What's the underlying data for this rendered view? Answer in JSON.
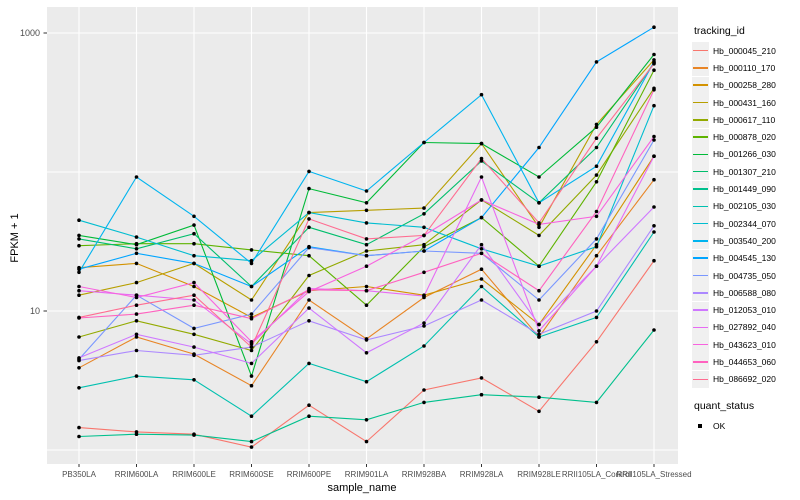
{
  "chart_data": {
    "type": "line",
    "title": "",
    "xlabel": "sample_name",
    "ylabel": "FPKM + 1",
    "y_scale": "log10",
    "ylim": [
      0.9,
      1300
    ],
    "grid": true,
    "panel_bg": "#EBEBEB",
    "grid_color": "#FFFFFF",
    "point_color": "#000000",
    "axis_text_color": "#4D4D4D",
    "y_ticks": [
      {
        "label": "1000",
        "value": 1000
      },
      {
        "label": "10",
        "value": 10
      }
    ],
    "y_gridlines": [
      1,
      10,
      100,
      1000
    ],
    "categories": [
      "PB350LA",
      "RRIM600LA",
      "RRIM600LE",
      "RRIM600SE",
      "RRIM600PE",
      "RRIM901LA",
      "RRIM928BA",
      "RRIM928LA",
      "RRIM928LE",
      "RRII105LA_Control",
      "RRII105LA_Stressed"
    ],
    "legend_title": "tracking_id",
    "legend_position": "right",
    "series": [
      {
        "name": "Hb_000045_210",
        "color": "#F8766D",
        "values": [
          1.45,
          1.35,
          1.3,
          1.05,
          2.1,
          1.15,
          2.7,
          3.3,
          1.9,
          6,
          23
        ]
      },
      {
        "name": "Hb_000110_170",
        "color": "#E88526",
        "values": [
          3.9,
          6.5,
          4.9,
          2.9,
          12,
          6.3,
          12.5,
          20,
          6.5,
          25,
          88
        ]
      },
      {
        "name": "Hb_000258_280",
        "color": "#D39200",
        "values": [
          20.5,
          22,
          15,
          9,
          14,
          15,
          13,
          17,
          8,
          30,
          130
        ]
      },
      {
        "name": "Hb_000431_160",
        "color": "#B79F00",
        "values": [
          13,
          16,
          22,
          12,
          51,
          53,
          55,
          160,
          40,
          220,
          640
        ]
      },
      {
        "name": "Hb_000617_110",
        "color": "#93AA00",
        "values": [
          6.5,
          8.5,
          6.8,
          5.2,
          18,
          27,
          30,
          63,
          35,
          95,
          400
        ]
      },
      {
        "name": "Hb_000878_020",
        "color": "#5EB300",
        "values": [
          29.5,
          30.5,
          30.5,
          27.5,
          25,
          11,
          29,
          47,
          21,
          85,
          540
        ]
      },
      {
        "name": "Hb_001266_030",
        "color": "#00BA38",
        "values": [
          35,
          30,
          41.5,
          3.4,
          76,
          60,
          163,
          160,
          92,
          210,
          700
        ]
      },
      {
        "name": "Hb_001307_210",
        "color": "#00BE6C",
        "values": [
          33,
          28,
          36,
          15,
          40,
          30,
          50,
          120,
          60,
          150,
          610
        ]
      },
      {
        "name": "Hb_001449_090",
        "color": "#00C08D",
        "values": [
          1.25,
          1.3,
          1.28,
          1.15,
          1.75,
          1.65,
          2.2,
          2.5,
          2.4,
          2.2,
          7.3
        ]
      },
      {
        "name": "Hb_002105_030",
        "color": "#00C0AF",
        "values": [
          2.8,
          3.4,
          3.2,
          1.75,
          4.2,
          3.1,
          5.6,
          15,
          6.5,
          9,
          37
        ]
      },
      {
        "name": "Hb_002344_070",
        "color": "#00BDD0",
        "values": [
          45,
          34,
          25,
          23,
          51,
          43,
          40,
          28,
          21,
          29,
          300
        ]
      },
      {
        "name": "Hb_003540_200",
        "color": "#00B4EF",
        "values": [
          19,
          92,
          48,
          22,
          101,
          73,
          163,
          360,
          60,
          110,
          620
        ]
      },
      {
        "name": "Hb_004545_130",
        "color": "#00A5FF",
        "values": [
          20,
          26,
          22,
          15,
          29,
          25,
          27,
          47,
          150,
          620,
          1100
        ]
      },
      {
        "name": "Hb_004735_050",
        "color": "#7997FF",
        "values": [
          4.5,
          13,
          7.5,
          9.5,
          28.6,
          25,
          27,
          26,
          12,
          33,
          170
        ]
      },
      {
        "name": "Hb_006588_080",
        "color": "#AC88FF",
        "values": [
          4.4,
          5.2,
          4.8,
          5.5,
          8.5,
          6.2,
          7.8,
          12,
          6.8,
          10,
          41
        ]
      },
      {
        "name": "Hb_012053_010",
        "color": "#CF78FF",
        "values": [
          4.6,
          6.8,
          5.5,
          4.2,
          10.5,
          5,
          8.2,
          30,
          8,
          21,
          56
        ]
      },
      {
        "name": "Hb_027892_040",
        "color": "#E76BF3",
        "values": [
          14,
          13,
          12,
          5.8,
          14.5,
          14,
          12.8,
          92,
          7.2,
          21,
          130
        ]
      },
      {
        "name": "Hb_043623_010",
        "color": "#F863DF",
        "values": [
          15,
          12.5,
          16,
          6,
          13.8,
          21,
          35,
          63,
          42,
          48,
          180
        ]
      },
      {
        "name": "Hb_044653_060",
        "color": "#FF62BF",
        "values": [
          8.9,
          9.5,
          11,
          8.8,
          14.2,
          14,
          19,
          26,
          14,
          52,
          390
        ]
      },
      {
        "name": "Hb_086692_020",
        "color": "#FF6C91",
        "values": [
          9,
          11,
          13,
          5.5,
          46,
          33,
          35,
          125,
          43,
          175,
          600
        ]
      }
    ],
    "quant_legend": {
      "title": "quant_status",
      "items": [
        {
          "label": "OK",
          "symbol": "square",
          "color": "#000000"
        }
      ]
    }
  }
}
